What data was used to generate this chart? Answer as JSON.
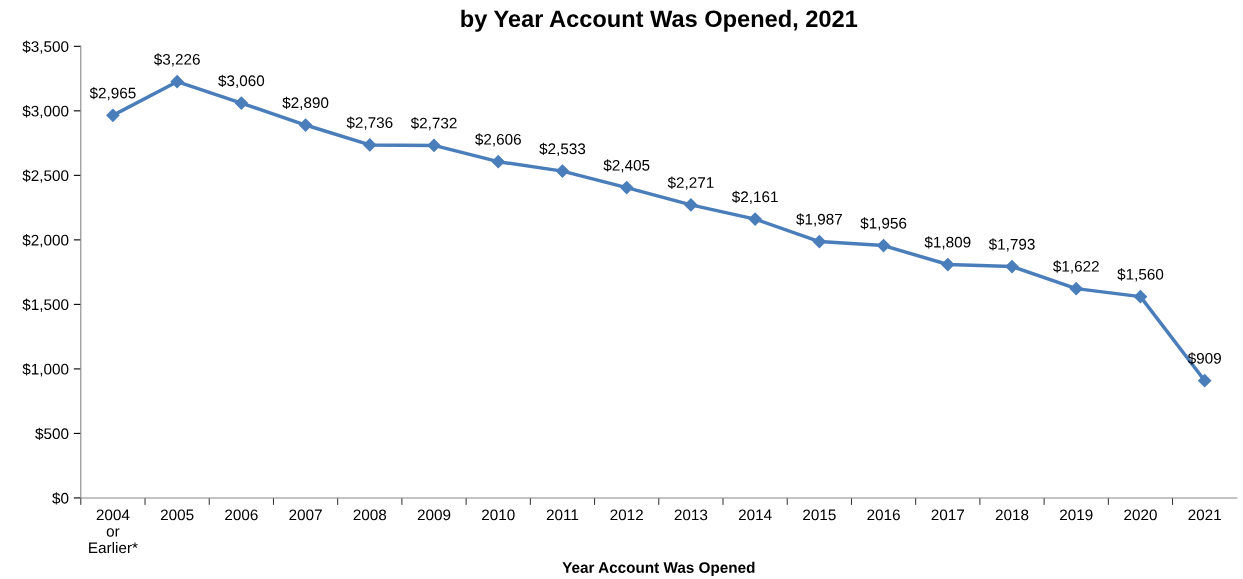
{
  "chart_data": {
    "type": "line",
    "title": "by Year Account Was Opened, 2021",
    "xlabel": "Year Account Was Opened",
    "categories": [
      "2004\nor\nEarlier*",
      "2005",
      "2006",
      "2007",
      "2008",
      "2009",
      "2010",
      "2011",
      "2012",
      "2013",
      "2014",
      "2015",
      "2016",
      "2017",
      "2018",
      "2019",
      "2020",
      "2021"
    ],
    "series": [
      {
        "color": "#4a7ebb",
        "values": [
          2965,
          3226,
          3060,
          2890,
          2736,
          2732,
          2606,
          2533,
          2405,
          2271,
          2161,
          1987,
          1956,
          1809,
          1793,
          1622,
          1560,
          909
        ],
        "value_labels": [
          "$2,965",
          "$3,226",
          "$3,060",
          "$2,890",
          "$2,736",
          "$2,732",
          "$2,606",
          "$2,533",
          "$2,405",
          "$2,271",
          "$2,161",
          "$1,987",
          "$1,956",
          "$1,809",
          "$1,793",
          "$1,622",
          "$1,560",
          "$909"
        ]
      }
    ],
    "ylim": [
      0,
      3500
    ],
    "yticks": [
      {
        "value": 0,
        "label": "$0"
      },
      {
        "value": 500,
        "label": "$500"
      },
      {
        "value": 1000,
        "label": "$1,000"
      },
      {
        "value": 1500,
        "label": "$1,500"
      },
      {
        "value": 2000,
        "label": "$2,000"
      },
      {
        "value": 2500,
        "label": "$2,500"
      },
      {
        "value": 3000,
        "label": "$3,000"
      },
      {
        "value": 3500,
        "label": "$3,500"
      }
    ],
    "marker": "diamond",
    "line_style": "solid",
    "grid": false,
    "legend": false
  }
}
